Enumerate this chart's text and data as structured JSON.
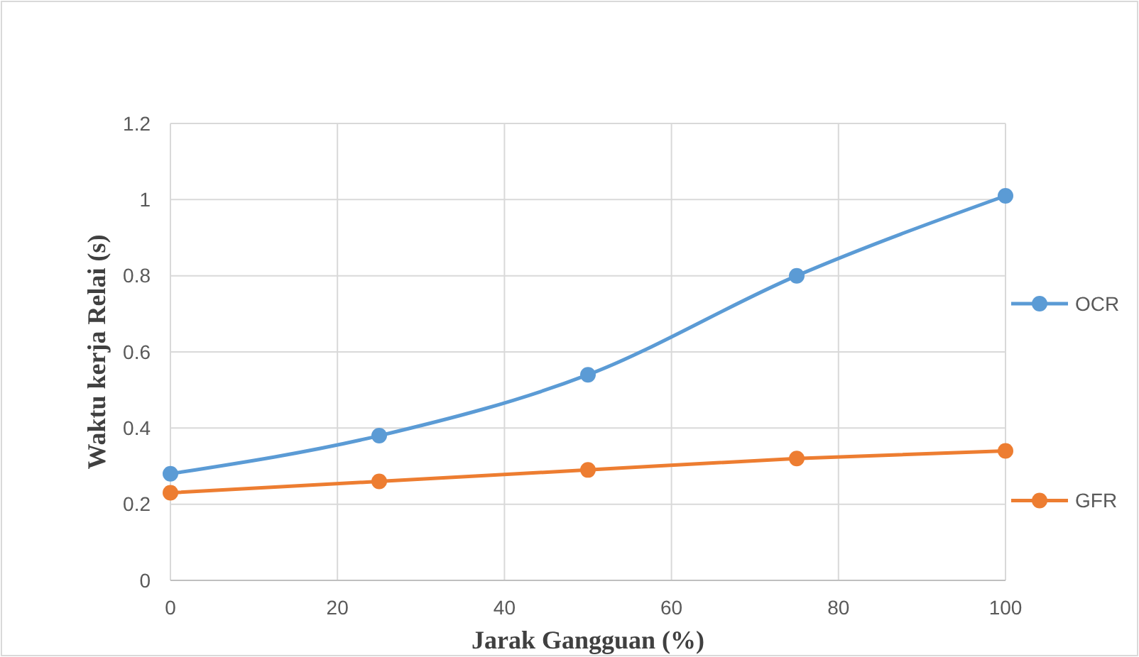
{
  "chart_data": {
    "type": "line",
    "xlabel": "Jarak Gangguan (%)",
    "ylabel": "Waktu kerja Relai (s)",
    "x": [
      0,
      25,
      50,
      75,
      100
    ],
    "series": [
      {
        "name": "OCR",
        "color": "#5b9bd5",
        "values": [
          0.28,
          0.38,
          0.54,
          0.8,
          1.01
        ]
      },
      {
        "name": "GFR",
        "color": "#ed7d31",
        "values": [
          0.23,
          0.26,
          0.29,
          0.32,
          0.34
        ]
      }
    ],
    "xlim": [
      0,
      100
    ],
    "xticks": [
      0,
      20,
      40,
      60,
      80,
      100
    ],
    "ylim": [
      0,
      1.2
    ],
    "yticks": [
      0,
      0.2,
      0.4,
      0.6,
      0.8,
      1,
      1.2
    ],
    "grid": true,
    "legend": "right",
    "marker": "circle",
    "line_style": "solid"
  }
}
